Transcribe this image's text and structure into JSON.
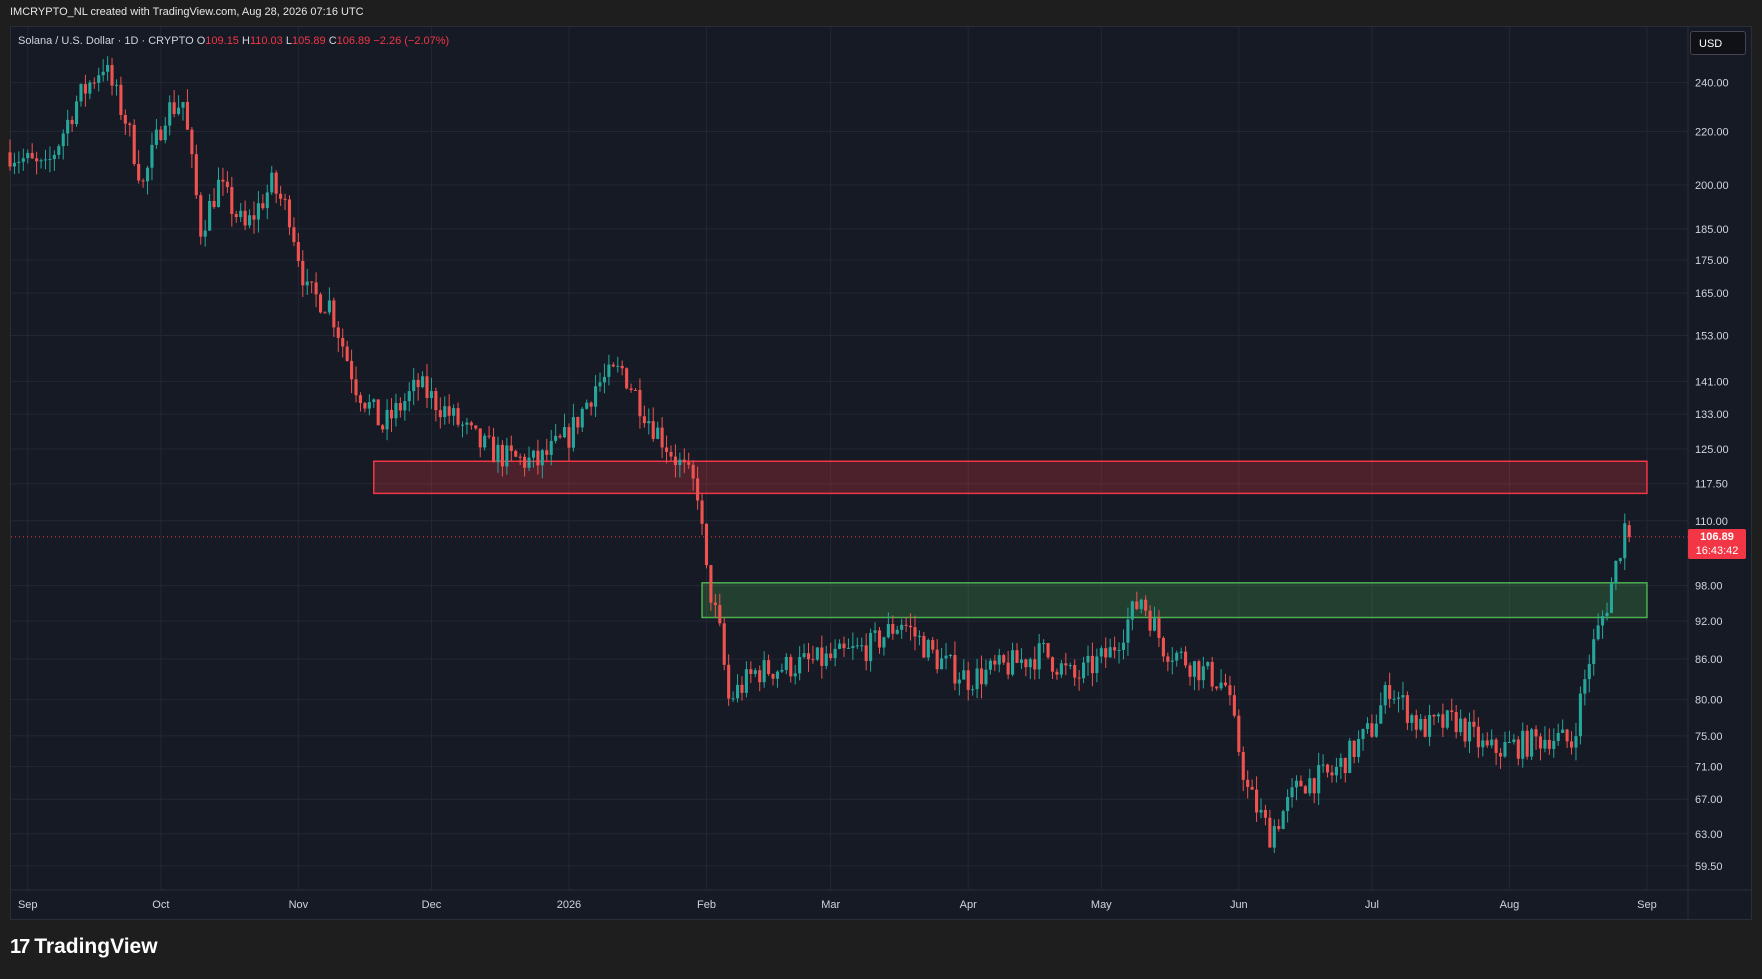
{
  "header": {
    "attribution": "IMCRYPTO_NL created with TradingView.com, Aug 28, 2026 07:16 UTC"
  },
  "legend": {
    "symbol": "Solana / U.S. Dollar · 1D · CRYPTO",
    "o_label": "O",
    "o_value": "109.15",
    "h_label": "H",
    "h_value": "110.03",
    "l_label": "L",
    "l_value": "105.89",
    "c_label": "C",
    "c_value": "106.89",
    "change": "−2.26 (−2.07%)"
  },
  "currency_button": "USD",
  "last_price": {
    "price": "106.89",
    "countdown": "16:43:42"
  },
  "brand": {
    "name": "TradingView"
  },
  "colors": {
    "up": "#26a69a",
    "down": "#ef5350",
    "resistance": "#f23645",
    "support": "#4caf50",
    "background": "#161a25",
    "grid": "#232734"
  },
  "chart_data": {
    "type": "candlestick",
    "symbol": "SOLUSD",
    "timeframe": "1D",
    "x_range": [
      "2025-08-28",
      "2026-09-08"
    ],
    "y_scale": "log",
    "ylim": [
      57,
      265
    ],
    "y_ticks": [
      240.0,
      220.0,
      200.0,
      185.0,
      175.0,
      165.0,
      153.0,
      141.0,
      133.0,
      125.0,
      117.5,
      110.0,
      98.0,
      92.0,
      86.0,
      80.0,
      75.0,
      71.0,
      67.0,
      63.0,
      59.5
    ],
    "y_tick_labels": [
      "240.00",
      "220.00",
      "200.00",
      "185.00",
      "175.00",
      "165.00",
      "153.00",
      "141.00",
      "133.00",
      "125.00",
      "117.50",
      "110.00",
      "98.00",
      "92.00",
      "86.00",
      "80.00",
      "75.00",
      "71.00",
      "67.00",
      "63.00",
      "59.50"
    ],
    "x_ticks": [
      {
        "date": "2025-09-01",
        "label": "Sep"
      },
      {
        "date": "2025-10-01",
        "label": "Oct"
      },
      {
        "date": "2025-11-01",
        "label": "Nov"
      },
      {
        "date": "2025-12-01",
        "label": "Dec"
      },
      {
        "date": "2026-01-01",
        "label": "2026"
      },
      {
        "date": "2026-02-01",
        "label": "Feb"
      },
      {
        "date": "2026-03-01",
        "label": "Mar"
      },
      {
        "date": "2026-04-01",
        "label": "Apr"
      },
      {
        "date": "2026-05-01",
        "label": "May"
      },
      {
        "date": "2026-06-01",
        "label": "Jun"
      },
      {
        "date": "2026-07-01",
        "label": "Jul"
      },
      {
        "date": "2026-08-01",
        "label": "Aug"
      },
      {
        "date": "2026-09-01",
        "label": "Sep"
      }
    ],
    "close_path": [
      [
        "2025-08-28",
        212
      ],
      [
        "2025-09-05",
        205
      ],
      [
        "2025-09-12",
        232
      ],
      [
        "2025-09-18",
        248
      ],
      [
        "2025-09-23",
        225
      ],
      [
        "2025-09-27",
        200
      ],
      [
        "2025-10-02",
        228
      ],
      [
        "2025-10-06",
        232
      ],
      [
        "2025-10-10",
        185
      ],
      [
        "2025-10-14",
        200
      ],
      [
        "2025-10-20",
        185
      ],
      [
        "2025-10-26",
        200
      ],
      [
        "2025-10-30",
        190
      ],
      [
        "2025-11-03",
        165
      ],
      [
        "2025-11-08",
        162
      ],
      [
        "2025-11-14",
        140
      ],
      [
        "2025-11-20",
        130
      ],
      [
        "2025-11-28",
        140
      ],
      [
        "2025-12-05",
        133
      ],
      [
        "2025-12-12",
        126
      ],
      [
        "2025-12-18",
        123
      ],
      [
        "2025-12-25",
        122
      ],
      [
        "2026-01-01",
        128
      ],
      [
        "2026-01-07",
        140
      ],
      [
        "2026-01-13",
        144
      ],
      [
        "2026-01-19",
        132
      ],
      [
        "2026-01-25",
        123
      ],
      [
        "2026-01-30",
        116
      ],
      [
        "2026-02-01",
        100
      ],
      [
        "2026-02-04",
        90
      ],
      [
        "2026-02-06",
        80
      ],
      [
        "2026-02-12",
        84
      ],
      [
        "2026-02-20",
        85
      ],
      [
        "2026-03-01",
        86
      ],
      [
        "2026-03-10",
        88
      ],
      [
        "2026-03-17",
        92
      ],
      [
        "2026-03-25",
        86
      ],
      [
        "2026-04-01",
        83
      ],
      [
        "2026-04-10",
        85
      ],
      [
        "2026-04-18",
        87
      ],
      [
        "2026-04-25",
        83
      ],
      [
        "2026-05-03",
        87
      ],
      [
        "2026-05-10",
        96
      ],
      [
        "2026-05-15",
        88
      ],
      [
        "2026-05-22",
        85
      ],
      [
        "2026-05-29",
        82
      ],
      [
        "2026-06-03",
        68
      ],
      [
        "2026-06-08",
        63
      ],
      [
        "2026-06-15",
        69
      ],
      [
        "2026-06-22",
        70
      ],
      [
        "2026-07-01",
        76
      ],
      [
        "2026-07-05",
        82
      ],
      [
        "2026-07-12",
        76
      ],
      [
        "2026-07-20",
        77
      ],
      [
        "2026-07-27",
        73
      ],
      [
        "2026-08-05",
        74
      ],
      [
        "2026-08-10",
        75
      ],
      [
        "2026-08-15",
        74
      ],
      [
        "2026-08-19",
        86
      ],
      [
        "2026-08-23",
        95
      ],
      [
        "2026-08-26",
        105
      ],
      [
        "2026-08-27",
        109.15
      ],
      [
        "2026-08-28",
        106.89
      ]
    ],
    "last_candle": {
      "date": "2026-08-28",
      "open": 109.15,
      "high": 110.03,
      "low": 105.89,
      "close": 106.89
    },
    "zones": [
      {
        "role": "resistance",
        "from": "2025-11-18",
        "to": "2026-09-01",
        "low": 115.5,
        "high": 122.3,
        "color": "#f23645"
      },
      {
        "role": "support",
        "from": "2026-01-31",
        "to": "2026-09-01",
        "low": 92.6,
        "high": 98.5,
        "color": "#4caf50"
      }
    ],
    "grid": true
  }
}
